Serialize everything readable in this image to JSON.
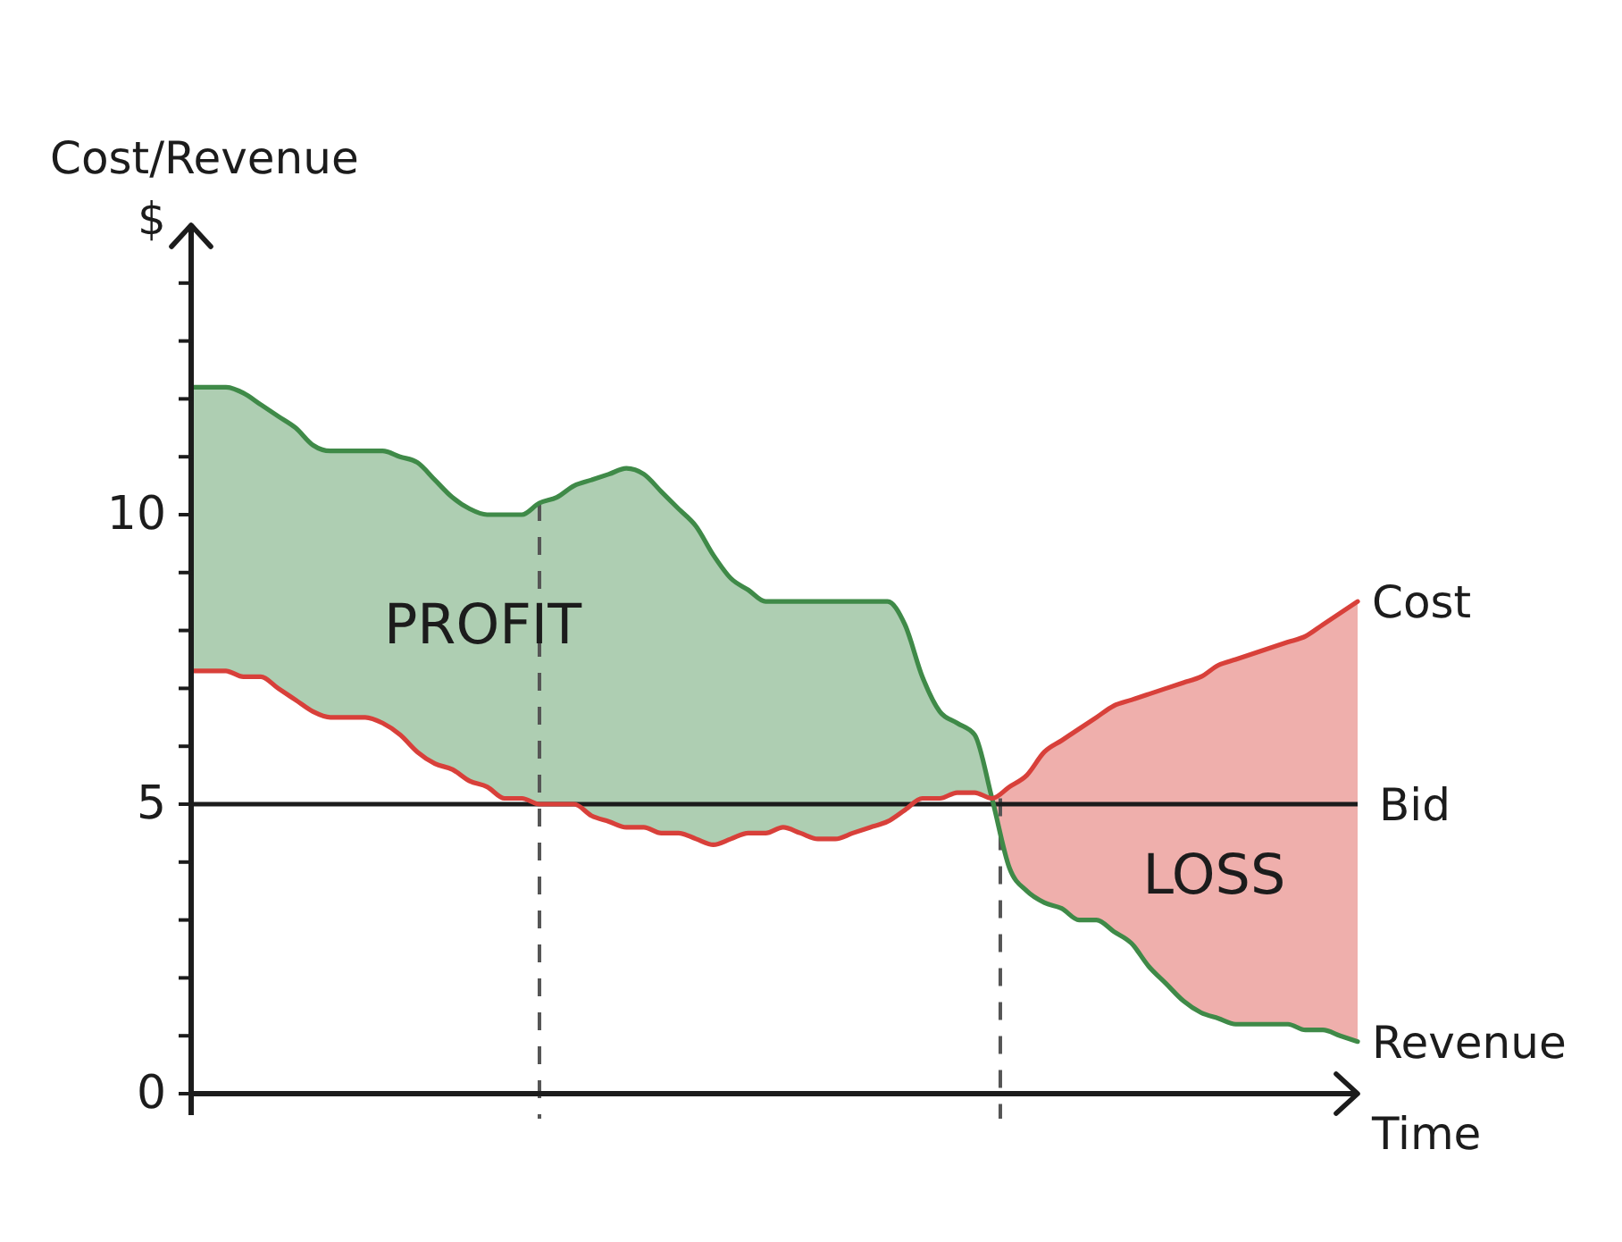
{
  "chart_data": {
    "type": "line",
    "xlabel": "Time",
    "ylabel": "Cost/Revenue\n$",
    "categories": [
      null,
      null,
      null,
      null,
      null,
      null,
      null,
      null,
      null,
      null,
      null,
      null,
      null,
      null,
      null,
      null,
      null,
      null,
      null,
      null,
      null,
      null,
      null,
      null,
      null,
      null,
      null,
      null,
      null,
      null,
      null,
      null,
      null,
      null,
      null,
      null,
      null,
      null,
      null,
      null,
      null,
      null,
      null,
      null,
      null,
      null,
      null,
      null,
      null,
      null,
      null,
      null,
      null,
      null,
      null,
      null,
      null,
      null,
      null,
      null,
      null,
      null,
      null,
      null,
      null,
      null,
      null,
      null
    ],
    "series": [
      {
        "name": "Revenue",
        "color": "#3f8a48",
        "values": [
          12.2,
          12.2,
          12.2,
          12.1,
          11.9,
          11.7,
          11.5,
          11.2,
          11.1,
          11.1,
          11.1,
          11.1,
          11.0,
          10.9,
          10.6,
          10.3,
          10.1,
          10.0,
          10.0,
          10.0,
          10.2,
          10.3,
          10.5,
          10.6,
          10.7,
          10.8,
          10.7,
          10.4,
          10.1,
          9.8,
          9.3,
          8.9,
          8.7,
          8.5,
          8.5,
          8.5,
          8.5,
          8.5,
          8.5,
          8.5,
          8.5,
          8.1,
          7.2,
          6.6,
          6.4,
          6.2,
          5.1,
          3.9,
          3.5,
          3.3,
          3.2,
          3.0,
          3.0,
          2.8,
          2.6,
          2.2,
          1.9,
          1.6,
          1.4,
          1.3,
          1.2,
          1.2,
          1.2,
          1.2,
          1.1,
          1.1,
          1.0,
          0.9
        ],
        "lower": [
          7.3,
          7.3,
          7.3,
          7.2,
          7.2,
          7.0,
          6.8,
          6.6,
          6.5,
          6.5,
          6.5,
          6.4,
          6.2,
          5.9,
          5.7,
          5.6,
          5.4,
          5.3,
          5.1,
          5.1,
          5.0,
          5.0,
          5.0,
          4.8,
          4.7,
          4.6,
          4.6,
          4.5,
          4.5,
          4.4,
          4.3,
          4.4,
          4.5,
          4.5,
          4.6,
          4.5,
          4.4,
          4.4,
          4.5,
          4.6,
          4.7,
          4.9,
          5.1,
          5.1,
          5.2,
          5.2,
          5.1,
          null,
          null,
          null,
          null,
          null,
          null,
          null,
          null,
          null,
          null,
          null,
          null,
          null,
          null,
          null,
          null,
          null,
          null,
          null,
          null,
          null
        ],
        "upper": [
          12.2,
          12.2,
          12.2,
          12.1,
          11.9,
          11.7,
          11.5,
          11.2,
          11.1,
          11.1,
          11.1,
          11.1,
          11.0,
          10.9,
          10.6,
          10.3,
          10.1,
          10.0,
          10.0,
          10.0,
          10.2,
          10.3,
          10.5,
          10.6,
          10.7,
          10.8,
          10.7,
          10.4,
          10.1,
          9.8,
          9.3,
          8.9,
          8.7,
          8.5,
          8.5,
          8.5,
          8.5,
          8.5,
          8.5,
          8.5,
          8.5,
          8.1,
          7.2,
          6.6,
          6.4,
          6.2,
          5.1,
          null,
          null,
          null,
          null,
          null,
          null,
          null,
          null,
          null,
          null,
          null,
          null,
          null,
          null,
          null,
          null,
          null,
          null,
          null,
          null,
          null
        ]
      },
      {
        "name": "Cost",
        "color": "#d8403a",
        "values": [
          7.3,
          7.3,
          7.3,
          7.2,
          7.2,
          7.0,
          6.8,
          6.6,
          6.5,
          6.5,
          6.5,
          6.4,
          6.2,
          5.9,
          5.7,
          5.6,
          5.4,
          5.3,
          5.1,
          5.1,
          5.0,
          5.0,
          5.0,
          4.8,
          4.7,
          4.6,
          4.6,
          4.5,
          4.5,
          4.4,
          4.3,
          4.4,
          4.5,
          4.5,
          4.6,
          4.5,
          4.4,
          4.4,
          4.5,
          4.6,
          4.7,
          4.9,
          5.1,
          5.1,
          5.2,
          5.2,
          5.1,
          5.3,
          5.5,
          5.9,
          6.1,
          6.3,
          6.5,
          6.7,
          6.8,
          6.9,
          7.0,
          7.1,
          7.2,
          7.4,
          7.5,
          7.6,
          7.7,
          7.8,
          7.9,
          8.1,
          8.3,
          8.5
        ],
        "lower": [
          null,
          null,
          null,
          null,
          null,
          null,
          null,
          null,
          null,
          null,
          null,
          null,
          null,
          null,
          null,
          null,
          null,
          null,
          null,
          null,
          null,
          null,
          null,
          null,
          null,
          null,
          null,
          null,
          null,
          null,
          null,
          null,
          null,
          null,
          null,
          null,
          null,
          null,
          null,
          null,
          null,
          null,
          null,
          null,
          null,
          null,
          5.1,
          3.9,
          3.5,
          3.3,
          3.2,
          3.0,
          3.0,
          2.8,
          2.6,
          2.2,
          1.9,
          1.6,
          1.4,
          1.3,
          1.2,
          1.2,
          1.2,
          1.2,
          1.1,
          1.1,
          1.0,
          0.9
        ],
        "upper": [
          null,
          null,
          null,
          null,
          null,
          null,
          null,
          null,
          null,
          null,
          null,
          null,
          null,
          null,
          null,
          null,
          null,
          null,
          null,
          null,
          null,
          null,
          null,
          null,
          null,
          null,
          null,
          null,
          null,
          null,
          null,
          null,
          null,
          null,
          null,
          null,
          null,
          null,
          null,
          null,
          null,
          null,
          null,
          null,
          null,
          null,
          5.1,
          5.3,
          5.5,
          5.9,
          6.1,
          6.3,
          6.5,
          6.7,
          6.8,
          6.9,
          7.0,
          7.1,
          7.2,
          7.4,
          7.5,
          7.6,
          7.7,
          7.8,
          7.9,
          8.1,
          8.3,
          8.5
        ]
      }
    ],
    "ylim": [
      0,
      15
    ],
    "yticks": [
      0,
      {
        "value": 1,
        "label": null
      },
      {
        "value": 2,
        "label": null
      },
      {
        "value": 3,
        "label": null
      },
      {
        "value": 4,
        "label": null
      },
      5,
      {
        "value": 6,
        "label": null
      },
      {
        "value": 7,
        "label": null
      },
      {
        "value": 8,
        "label": null
      },
      {
        "value": 9,
        "label": null
      },
      10,
      {
        "value": 11,
        "label": null
      },
      {
        "value": 12,
        "label": null
      },
      {
        "value": 13,
        "label": null
      },
      {
        "value": 14,
        "label": null
      }
    ],
    "tick_labels": "y",
    "ref_lines": [
      {
        "axis": "y",
        "value": 5,
        "label": "Bid",
        "color": "#1c1c1c"
      }
    ],
    "annotations": [
      "PROFIT",
      "LOSS"
    ]
  }
}
